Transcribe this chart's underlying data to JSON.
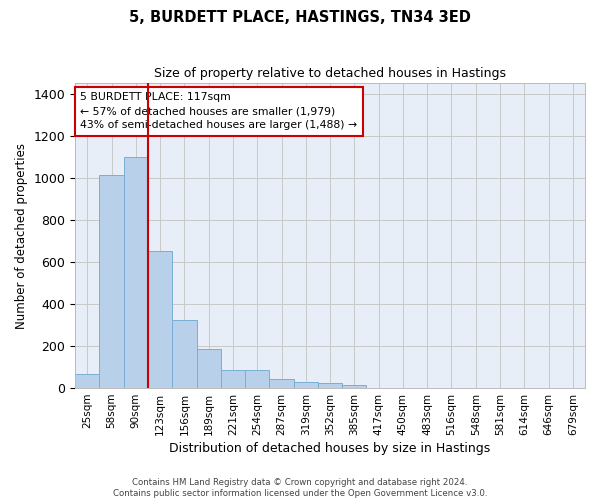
{
  "title_line1": "5, BURDETT PLACE, HASTINGS, TN34 3ED",
  "title_line2": "Size of property relative to detached houses in Hastings",
  "xlabel": "Distribution of detached houses by size in Hastings",
  "ylabel": "Number of detached properties",
  "bin_labels": [
    "25sqm",
    "58sqm",
    "90sqm",
    "123sqm",
    "156sqm",
    "189sqm",
    "221sqm",
    "254sqm",
    "287sqm",
    "319sqm",
    "352sqm",
    "385sqm",
    "417sqm",
    "450sqm",
    "483sqm",
    "516sqm",
    "548sqm",
    "581sqm",
    "614sqm",
    "646sqm",
    "679sqm"
  ],
  "bar_values": [
    65,
    1015,
    1100,
    650,
    325,
    185,
    85,
    85,
    45,
    30,
    25,
    15,
    0,
    0,
    0,
    0,
    0,
    0,
    0,
    0,
    0
  ],
  "bar_color": "#b8d0ea",
  "bar_edge_color": "#7aaed4",
  "grid_color": "#c8c8c8",
  "background_color": "#e8eef8",
  "vline_color": "#cc0000",
  "annotation_text": "5 BURDETT PLACE: 117sqm\n← 57% of detached houses are smaller (1,979)\n43% of semi-detached houses are larger (1,488) →",
  "annotation_box_color": "#cc0000",
  "ylim": [
    0,
    1450
  ],
  "yticks": [
    0,
    200,
    400,
    600,
    800,
    1000,
    1200,
    1400
  ],
  "footnote1": "Contains HM Land Registry data © Crown copyright and database right 2024.",
  "footnote2": "Contains public sector information licensed under the Open Government Licence v3.0."
}
